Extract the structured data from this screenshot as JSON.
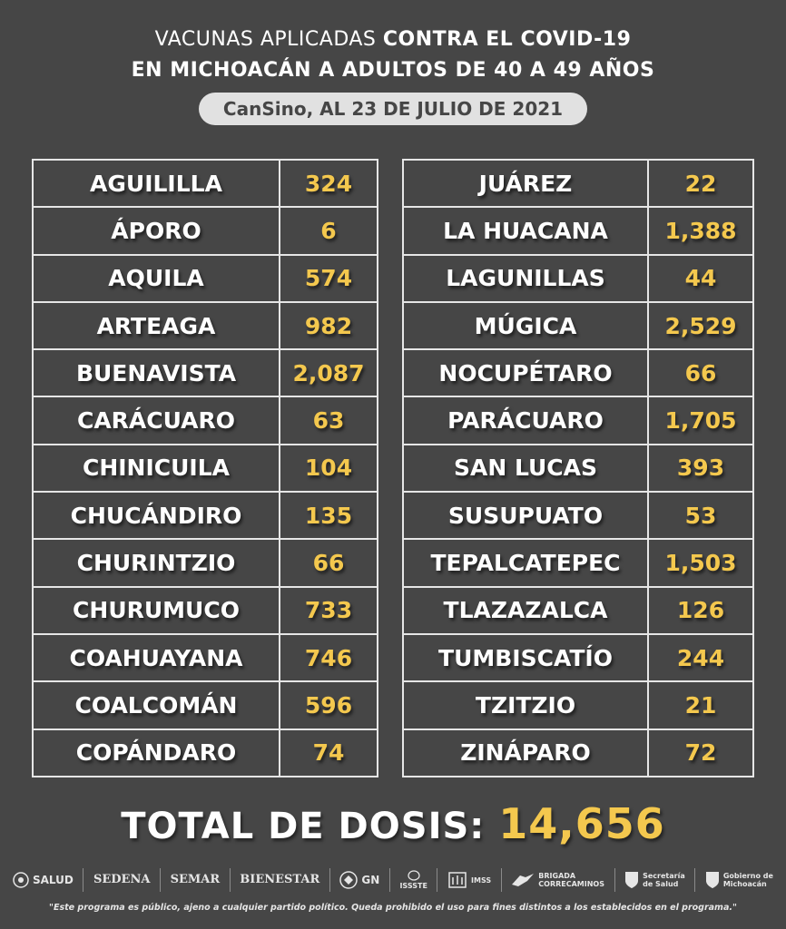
{
  "title": {
    "line1_light": "VACUNAS APLICADAS ",
    "line1_bold": "CONTRA EL COVID-19",
    "line2": "EN MICHOACÁN A ADULTOS DE 40 A 49 AÑOS"
  },
  "subtitle": "CanSino, AL 23 DE JULIO DE 2021",
  "colors": {
    "background": "#464646",
    "value": "#f4c84e",
    "border": "#e6e6e6",
    "pill": "#e1e1e1"
  },
  "left_table": [
    {
      "name": "AGUILILLA",
      "value": "324"
    },
    {
      "name": "ÁPORO",
      "value": "6"
    },
    {
      "name": "AQUILA",
      "value": "574"
    },
    {
      "name": "ARTEAGA",
      "value": "982"
    },
    {
      "name": "BUENAVISTA",
      "value": "2,087"
    },
    {
      "name": "CARÁCUARO",
      "value": "63"
    },
    {
      "name": "CHINICUILA",
      "value": "104"
    },
    {
      "name": "CHUCÁNDIRO",
      "value": "135"
    },
    {
      "name": "CHURINTZIO",
      "value": "66"
    },
    {
      "name": "CHURUMUCO",
      "value": "733"
    },
    {
      "name": "COAHUAYANA",
      "value": "746"
    },
    {
      "name": "COALCOMÁN",
      "value": "596"
    },
    {
      "name": "COPÁNDARO",
      "value": "74"
    }
  ],
  "right_table": [
    {
      "name": "JUÁREZ",
      "value": "22"
    },
    {
      "name": "LA HUACANA",
      "value": "1,388"
    },
    {
      "name": "LAGUNILLAS",
      "value": "44"
    },
    {
      "name": "MÚGICA",
      "value": "2,529"
    },
    {
      "name": "NOCUPÉTARO",
      "value": "66"
    },
    {
      "name": "PARÁCUARO",
      "value": "1,705"
    },
    {
      "name": "SAN LUCAS",
      "value": "393"
    },
    {
      "name": "SUSUPUATO",
      "value": "53"
    },
    {
      "name": "TEPALCATEPEC",
      "value": "1,503"
    },
    {
      "name": "TLAZAZALCA",
      "value": "126"
    },
    {
      "name": "TUMBISCATÍO",
      "value": "244"
    },
    {
      "name": "TZITZIO",
      "value": "21"
    },
    {
      "name": "ZINÁPARO",
      "value": "72"
    }
  ],
  "total": {
    "label": "TOTAL DE DOSIS:",
    "value": "14,656"
  },
  "logos": {
    "salud": "SALUD",
    "sedena": "SEDENA",
    "semar": "SEMAR",
    "bienestar": "BIENESTAR",
    "gn": "GN",
    "issste": "ISSSTE",
    "imss": "IMSS",
    "brigada_1": "BRIGADA",
    "brigada_2": "CORRECAMINOS",
    "secretaria_1": "Secretaría",
    "secretaria_2": "de Salud",
    "gobierno_1": "Gobierno de",
    "gobierno_2": "Michoacán"
  },
  "disclaimer": "\"Este programa es público, ajeno a cualquier partido político. Queda prohibido el uso para fines distintos a los establecidos en el programa.\""
}
